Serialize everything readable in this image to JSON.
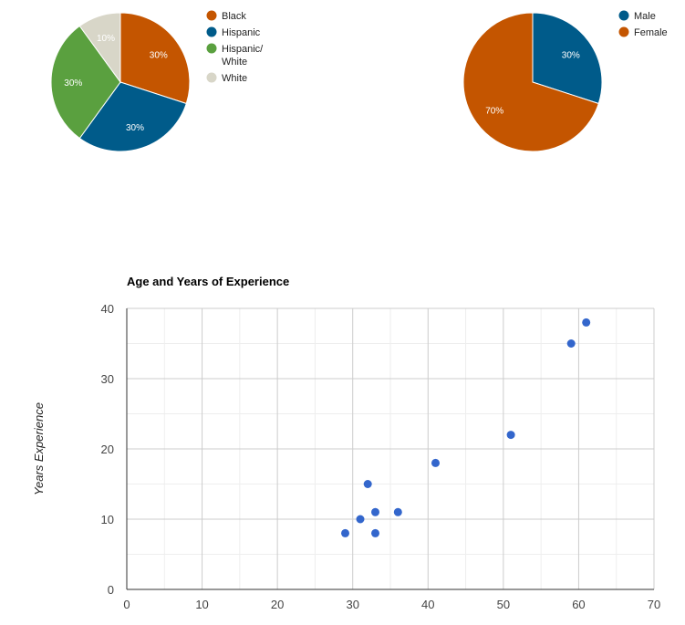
{
  "chart_data": [
    {
      "type": "pie",
      "categories": [
        "Black",
        "Hispanic",
        "Hispanic/ White",
        "White"
      ],
      "legend_lines": [
        [
          "Black"
        ],
        [
          "Hispanic"
        ],
        [
          "Hispanic/",
          "White"
        ],
        [
          "White"
        ]
      ],
      "values": [
        30,
        30,
        30,
        10
      ],
      "labels": [
        "30%",
        "30%",
        "30%",
        "10%"
      ],
      "colors": [
        "#c45500",
        "#005b8a",
        "#5aa03f",
        "#d8d6c8"
      ],
      "legend_position": "right"
    },
    {
      "type": "pie",
      "categories": [
        "Male",
        "Female"
      ],
      "legend_lines": [
        [
          "Male"
        ],
        [
          "Female"
        ]
      ],
      "values": [
        30,
        70
      ],
      "labels": [
        "30%",
        "70%"
      ],
      "colors": [
        "#005b8a",
        "#c45500"
      ],
      "legend_position": "right"
    },
    {
      "type": "scatter",
      "title": "Age and Years of Experience",
      "xlabel": "",
      "ylabel": "Years Experience",
      "xlim": [
        0,
        70
      ],
      "ylim": [
        0,
        40
      ],
      "xticks": [
        0,
        10,
        20,
        30,
        40,
        50,
        60,
        70
      ],
      "yticks": [
        0,
        10,
        20,
        30,
        40
      ],
      "grid": true,
      "point_color": "#3366cc",
      "points": [
        {
          "x": 29,
          "y": 8
        },
        {
          "x": 31,
          "y": 10
        },
        {
          "x": 32,
          "y": 15
        },
        {
          "x": 33,
          "y": 11
        },
        {
          "x": 33,
          "y": 8
        },
        {
          "x": 36,
          "y": 11
        },
        {
          "x": 41,
          "y": 18
        },
        {
          "x": 51,
          "y": 22
        },
        {
          "x": 59,
          "y": 35
        },
        {
          "x": 61,
          "y": 38
        }
      ]
    }
  ]
}
